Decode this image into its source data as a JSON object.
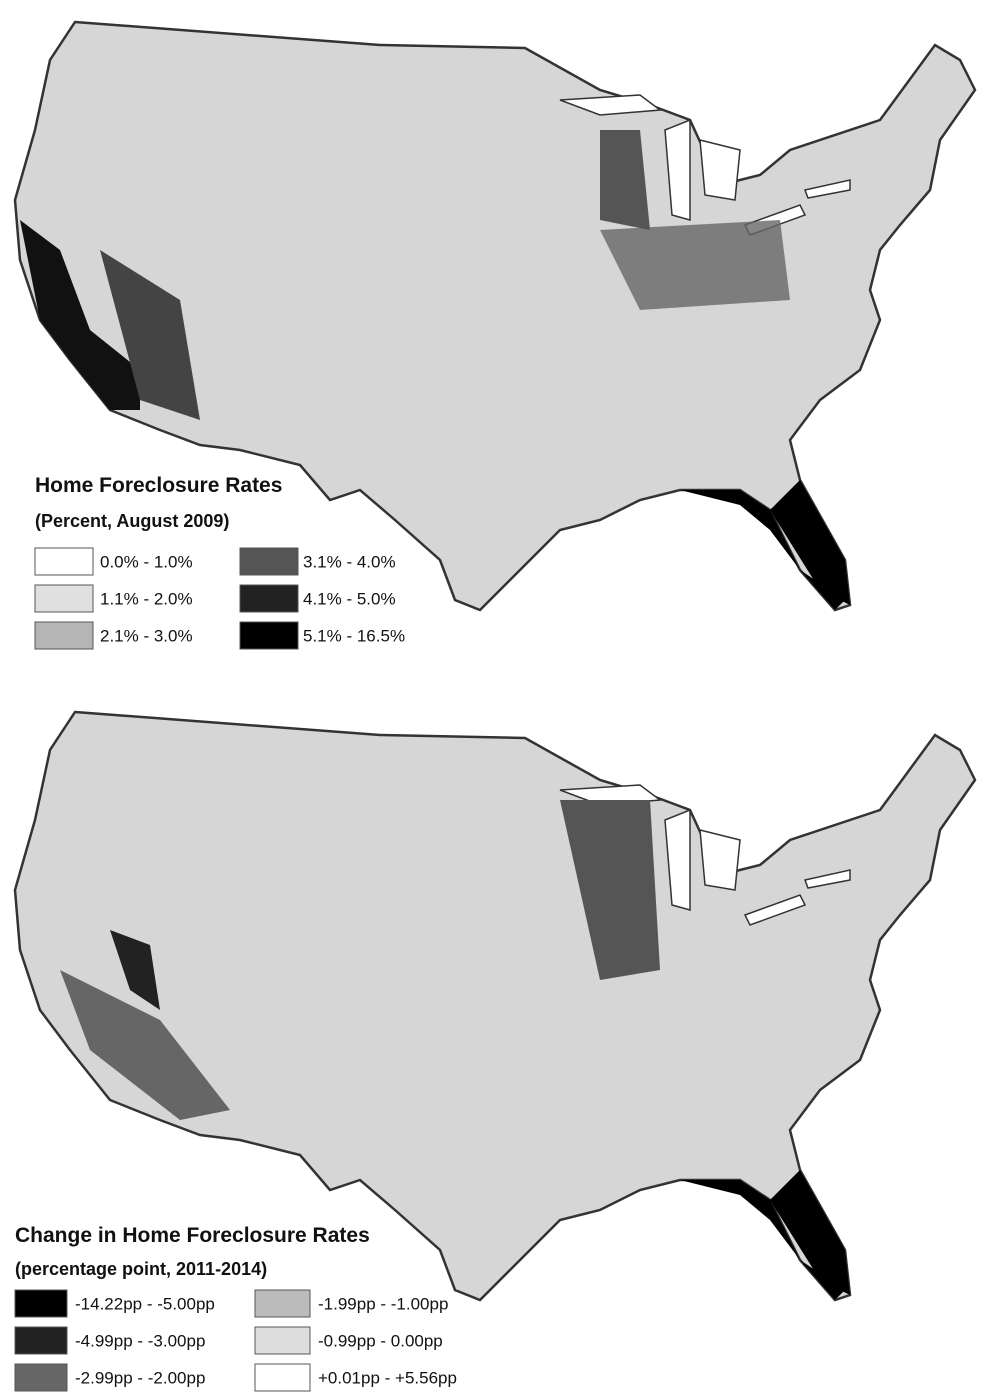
{
  "maps": [
    {
      "legend": {
        "title": "Home Foreclosure Rates",
        "subtitle": "(Percent, August 2009)",
        "items": [
          {
            "label": "0.0% - 1.0%",
            "color": "#ffffff"
          },
          {
            "label": "1.1% - 2.0%",
            "color": "#e0e0e0"
          },
          {
            "label": "2.1% - 3.0%",
            "color": "#b5b5b5"
          },
          {
            "label": "3.1% - 4.0%",
            "color": "#555555"
          },
          {
            "label": "4.1% - 5.0%",
            "color": "#222222"
          },
          {
            "label": "5.1% - 16.5%",
            "color": "#000000"
          }
        ]
      }
    },
    {
      "legend": {
        "title": "Change in Home Foreclosure Rates",
        "subtitle": "(percentage point, 2011-2014)",
        "items": [
          {
            "label": "-14.22pp - -5.00pp",
            "color": "#000000"
          },
          {
            "label": "-4.99pp - -3.00pp",
            "color": "#222222"
          },
          {
            "label": "-2.99pp - -2.00pp",
            "color": "#666666"
          },
          {
            "label": "-1.99pp - -1.00pp",
            "color": "#bbbbbb"
          },
          {
            "label": "-0.99pp - 0.00pp",
            "color": "#dddddd"
          },
          {
            "label": "+0.01pp - +5.56pp",
            "color": "#ffffff"
          }
        ]
      }
    }
  ]
}
